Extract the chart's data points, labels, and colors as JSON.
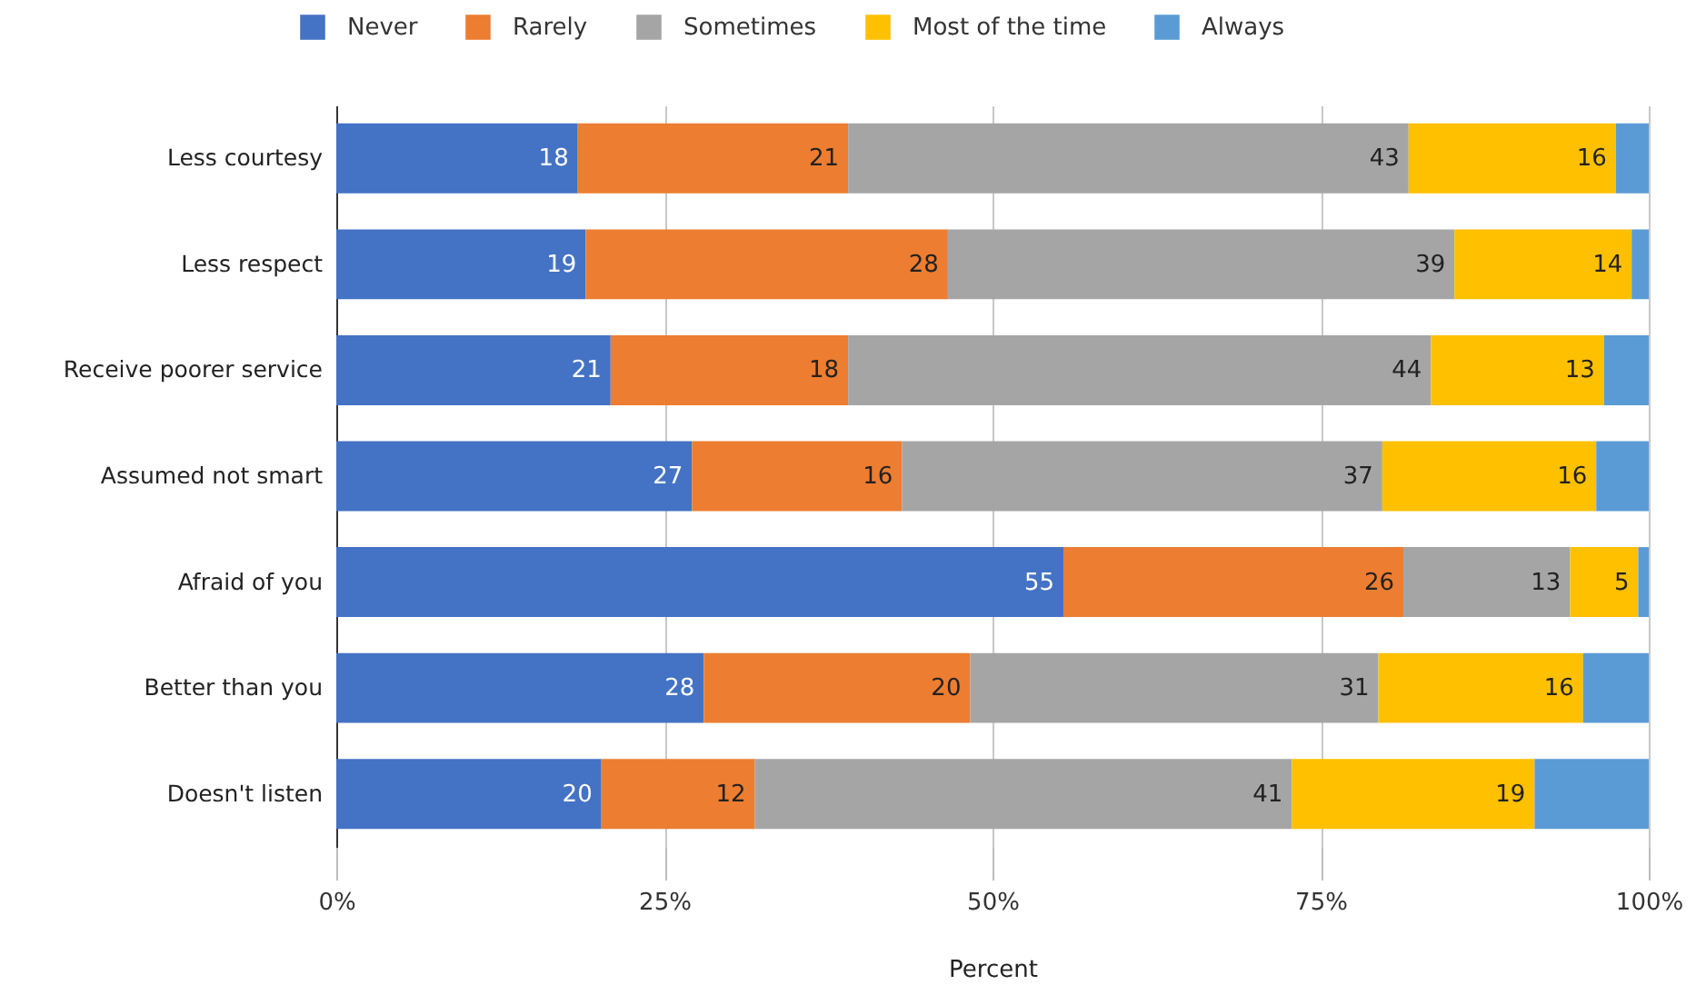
{
  "chart_data": {
    "type": "bar",
    "orientation": "horizontal",
    "stacked": true,
    "xlabel": "Percent",
    "categories": [
      "Less courtesy",
      "Less respect",
      "Receive poorer service",
      "Assumed not smart",
      "Afraid of you",
      "Better than you",
      "Doesn't listen"
    ],
    "series": [
      {
        "name": "Never",
        "color": "#4472c4",
        "values": [
          18.4,
          19.0,
          20.9,
          27.1,
          55.4,
          28.0,
          20.2
        ],
        "value_labels": [
          "18",
          "19",
          "21",
          "27",
          "55",
          "28",
          "20"
        ]
      },
      {
        "name": "Rarely",
        "color": "#ed7d31",
        "values": [
          20.6,
          27.6,
          18.1,
          16.0,
          25.9,
          20.3,
          11.7
        ],
        "value_labels": [
          "21",
          "28",
          "18",
          "16",
          "26",
          "20",
          "12"
        ]
      },
      {
        "name": "Sometimes",
        "color": "#a5a5a5",
        "values": [
          42.7,
          38.6,
          44.4,
          36.6,
          12.7,
          31.1,
          40.9
        ],
        "value_labels": [
          "43",
          "39",
          "44",
          "37",
          "13",
          "31",
          "41"
        ]
      },
      {
        "name": "Most of the time",
        "color": "#ffc000",
        "values": [
          15.8,
          13.5,
          13.2,
          16.3,
          5.2,
          15.6,
          18.5
        ],
        "value_labels": [
          "16",
          "14",
          "13",
          "16",
          "5",
          "16",
          "19"
        ]
      },
      {
        "name": "Always",
        "color": "#5b9bd5",
        "values": [
          2.5,
          1.3,
          3.4,
          4.0,
          0.8,
          5.0,
          8.7
        ]
      }
    ],
    "xlim": [
      0,
      100
    ],
    "xticks": [
      {
        "value": 0,
        "label": "0%"
      },
      {
        "value": 25,
        "label": "25%"
      },
      {
        "value": 50,
        "label": "50%"
      },
      {
        "value": 75,
        "label": "75%"
      },
      {
        "value": 100,
        "label": "100%"
      }
    ],
    "grid": "x",
    "legend": "top"
  }
}
